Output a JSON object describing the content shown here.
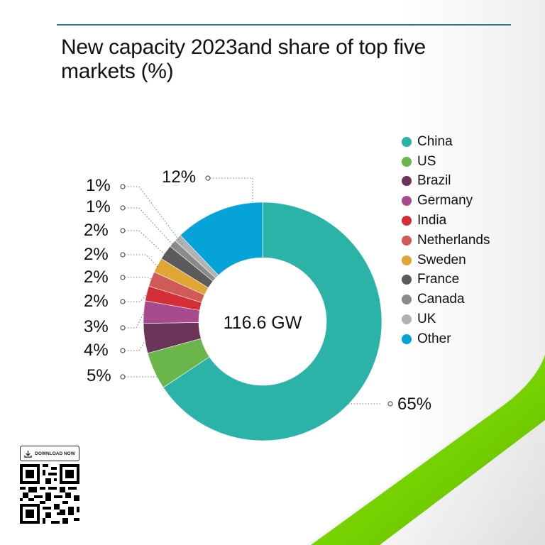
{
  "header": {
    "title": "New capacity 2023and share of top five markets (%)"
  },
  "chart_data": {
    "type": "pie",
    "subtype": "donut",
    "title": "New capacity 2023and share of top five markets (%)",
    "center_label": "116.6 GW",
    "categories": [
      "China",
      "US",
      "Brazil",
      "Germany",
      "India",
      "Netherlands",
      "Sweden",
      "France",
      "Canada",
      "UK",
      "Other"
    ],
    "values": [
      65,
      5,
      4,
      3,
      2,
      2,
      2,
      2,
      1,
      1,
      12
    ],
    "colors": [
      "#2bb3a8",
      "#6ab64a",
      "#6a3558",
      "#a84a8e",
      "#d42f36",
      "#d05a56",
      "#e0a634",
      "#5b5b5b",
      "#8a8a8a",
      "#b1b2b1",
      "#06a3d9"
    ],
    "units": "%",
    "legend_position": "right"
  },
  "chart": {
    "center_label": "116.6 GW",
    "labels": {
      "china": "65%",
      "us": "5%",
      "brazil": "4%",
      "germany": "3%",
      "india": "2%",
      "netherlands": "2%",
      "sweden": "2%",
      "france": "2%",
      "canada": "1%",
      "uk": "1%",
      "other": "12%"
    }
  },
  "legend": {
    "items": [
      {
        "label": "China",
        "color": "#2bb3a8"
      },
      {
        "label": "US",
        "color": "#6ab64a"
      },
      {
        "label": "Brazil",
        "color": "#6a3558"
      },
      {
        "label": "Germany",
        "color": "#a84a8e"
      },
      {
        "label": "India",
        "color": "#d42f36"
      },
      {
        "label": "Netherlands",
        "color": "#d05a56"
      },
      {
        "label": "Sweden",
        "color": "#e0a634"
      },
      {
        "label": "France",
        "color": "#5b5b5b"
      },
      {
        "label": "Canada",
        "color": "#8a8a8a"
      },
      {
        "label": "UK",
        "color": "#b1b2b1"
      },
      {
        "label": "Other",
        "color": "#06a3d9"
      }
    ]
  },
  "footer": {
    "download_label": "DOWNLOAD NOW",
    "download_icon": "download-icon"
  },
  "theme": {
    "accent_rule": "#2f7b99",
    "swoosh_green": "#76d400"
  }
}
